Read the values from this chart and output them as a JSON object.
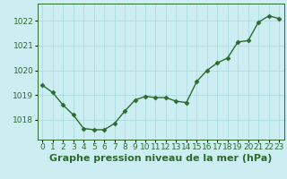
{
  "x": [
    0,
    1,
    2,
    3,
    4,
    5,
    6,
    7,
    8,
    9,
    10,
    11,
    12,
    13,
    14,
    15,
    16,
    17,
    18,
    19,
    20,
    21,
    22,
    23
  ],
  "y": [
    1019.4,
    1019.1,
    1018.6,
    1018.2,
    1017.65,
    1017.6,
    1017.6,
    1017.85,
    1018.35,
    1018.8,
    1018.95,
    1018.9,
    1018.9,
    1018.75,
    1018.7,
    1019.55,
    1020.0,
    1020.3,
    1020.5,
    1021.15,
    1021.2,
    1021.95,
    1022.2,
    1022.1
  ],
  "line_color": "#2d6a2d",
  "marker": "D",
  "marker_size": 2.5,
  "line_width": 1.0,
  "background_color": "#cceef2",
  "grid_color": "#aadddd",
  "ylabel_ticks": [
    1018,
    1019,
    1020,
    1021,
    1022
  ],
  "xlabel_label": "Graphe pression niveau de la mer (hPa)",
  "xlabel_fontsize": 8,
  "tick_fontsize": 6.5,
  "ylim": [
    1017.2,
    1022.7
  ],
  "xlim": [
    -0.5,
    23.5
  ]
}
